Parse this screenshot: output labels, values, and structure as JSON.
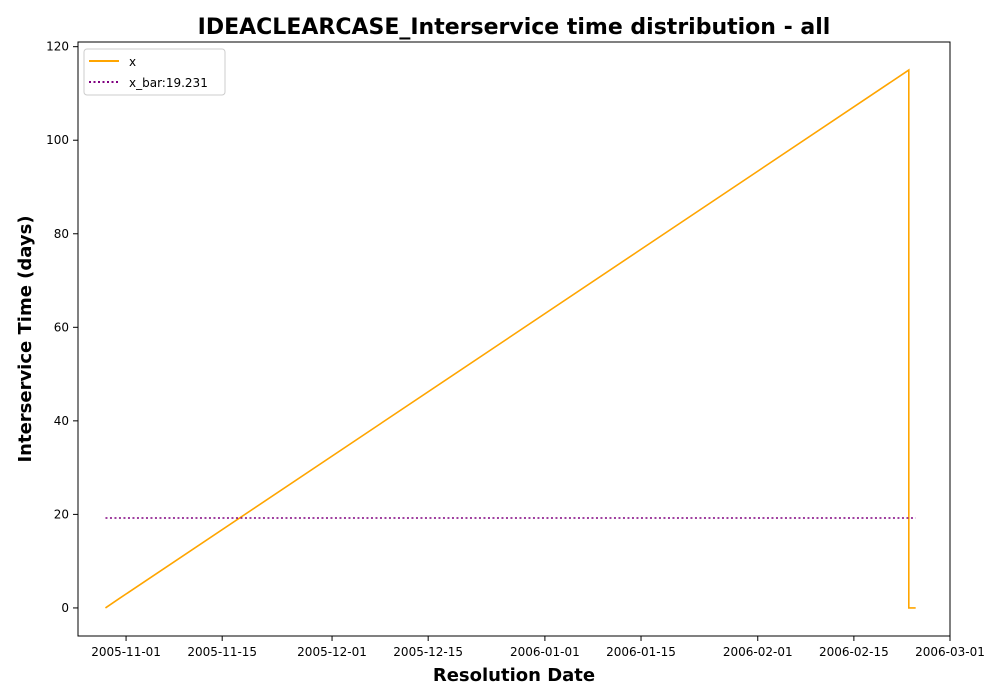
{
  "chart_data": {
    "type": "line",
    "title": "IDEACLEARCASE_Interservice time distribution - all",
    "xlabel": "Resolution Date",
    "ylabel": "Interservice Time (days)",
    "x_ticks": [
      "2005-11-01",
      "2005-11-15",
      "2005-12-01",
      "2005-12-15",
      "2006-01-01",
      "2006-01-15",
      "2006-02-01",
      "2006-02-15",
      "2006-03-01"
    ],
    "y_ticks": [
      0,
      20,
      40,
      60,
      80,
      100,
      120
    ],
    "xlim": [
      "2005-10-25",
      "2006-03-01"
    ],
    "ylim": [
      -6,
      121
    ],
    "grid": false,
    "legend_position": "top-left",
    "series": [
      {
        "name": "x",
        "color": "#ffa500",
        "style": "solid",
        "points": [
          {
            "x": "2005-10-29",
            "y": 0
          },
          {
            "x": "2005-10-31",
            "y": 2
          },
          {
            "x": "2006-02-23",
            "y": 115
          },
          {
            "x": "2006-02-23",
            "y": 0
          },
          {
            "x": "2006-02-24",
            "y": 0
          }
        ]
      },
      {
        "name": "x_bar:19.231",
        "color": "#800080",
        "style": "dotted",
        "points": [
          {
            "x": "2005-10-29",
            "y": 19.231
          },
          {
            "x": "2006-02-24",
            "y": 19.231
          }
        ]
      }
    ]
  }
}
